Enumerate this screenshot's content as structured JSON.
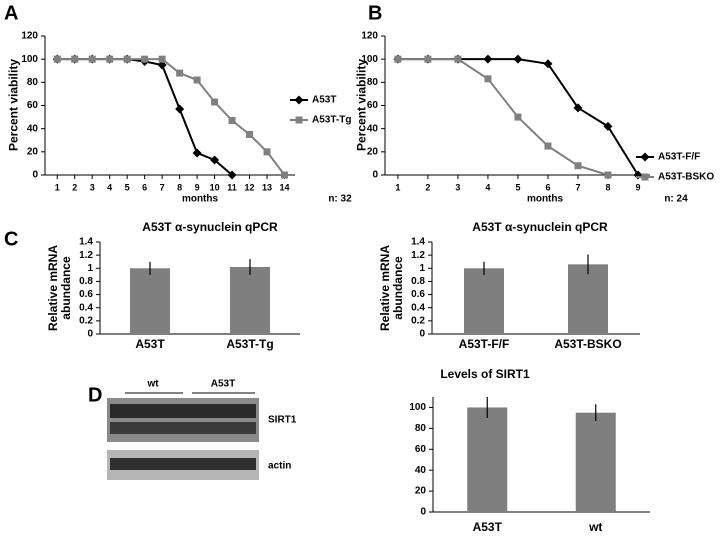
{
  "chart_data": [
    {
      "type": "line",
      "panel_label": "A",
      "ylabel": "Percent viability",
      "xlabel": "months",
      "annotation": "n: 32",
      "x": [
        1,
        2,
        3,
        4,
        5,
        6,
        7,
        8,
        9,
        10,
        11,
        12,
        13,
        14
      ],
      "series": [
        {
          "name": "A53T",
          "color": "#000000",
          "marker": "diamond",
          "values": [
            100,
            100,
            100,
            100,
            100,
            98,
            95,
            57,
            19,
            13,
            0,
            null,
            null,
            null
          ]
        },
        {
          "name": "A53T-Tg",
          "color": "#808080",
          "marker": "square",
          "values": [
            100,
            100,
            100,
            100,
            100,
            100,
            100,
            88,
            82,
            63,
            47,
            35,
            20,
            0
          ]
        }
      ],
      "xlim": [
        0.3,
        14.6
      ],
      "xticks": [
        1,
        2,
        3,
        4,
        5,
        6,
        7,
        8,
        9,
        10,
        11,
        12,
        13,
        14
      ],
      "ylim": [
        0,
        120
      ],
      "yticks": [
        0,
        20,
        40,
        60,
        80,
        100,
        120
      ]
    },
    {
      "type": "line",
      "panel_label": "B",
      "ylabel": "Percent viability",
      "xlabel": "months",
      "annotation": "n: 24",
      "x": [
        1,
        2,
        3,
        4,
        5,
        6,
        7,
        8,
        9
      ],
      "series": [
        {
          "name": "A53T-F/F",
          "color": "#000000",
          "marker": "diamond",
          "values": [
            100,
            100,
            100,
            100,
            100,
            96,
            58,
            42,
            0
          ]
        },
        {
          "name": "A53T-BSKO",
          "color": "#808080",
          "marker": "square",
          "values": [
            100,
            100,
            100,
            83,
            50,
            25,
            8,
            0,
            null
          ]
        }
      ],
      "xlim": [
        0.57,
        9.4
      ],
      "xticks": [
        1,
        2,
        3,
        4,
        5,
        6,
        7,
        8,
        9
      ],
      "ylim": [
        0,
        120
      ],
      "yticks": [
        0,
        20,
        40,
        60,
        80,
        100,
        120
      ]
    },
    {
      "type": "bar",
      "panel_label": "C",
      "title": "A53T α-synuclein qPCR",
      "ylabel": "Relative mRNA abundance",
      "categories": [
        "A53T",
        "A53T-Tg"
      ],
      "values": [
        1.0,
        1.02
      ],
      "errors": [
        0.1,
        0.12
      ],
      "color": "#7f7f7f",
      "ylim": [
        0,
        1.4
      ],
      "yticks": [
        0,
        0.2,
        0.4,
        0.6,
        0.8,
        1,
        1.2,
        1.4
      ]
    },
    {
      "type": "bar",
      "title": "A53T α-synuclein qPCR",
      "ylabel": "Relative mRNA abundance",
      "categories": [
        "A53T-F/F",
        "A53T-BSKO"
      ],
      "values": [
        1.0,
        1.06
      ],
      "errors": [
        0.1,
        0.15
      ],
      "color": "#7f7f7f",
      "ylim": [
        0,
        1.4
      ],
      "yticks": [
        0,
        0.2,
        0.4,
        0.6,
        0.8,
        1,
        1.2,
        1.4
      ]
    },
    {
      "type": "bar",
      "title": "Levels of SIRT1",
      "categories": [
        "A53T",
        "wt"
      ],
      "values": [
        100,
        95
      ],
      "errors": [
        10,
        8
      ],
      "color": "#7f7f7f",
      "ylim": [
        0,
        110
      ],
      "yticks": [
        0,
        20,
        40,
        60,
        80,
        100
      ]
    }
  ],
  "blot": {
    "panel_label": "D",
    "groups": [
      "wt",
      "A53T"
    ],
    "bands": [
      "SIRT1",
      "actin"
    ]
  }
}
